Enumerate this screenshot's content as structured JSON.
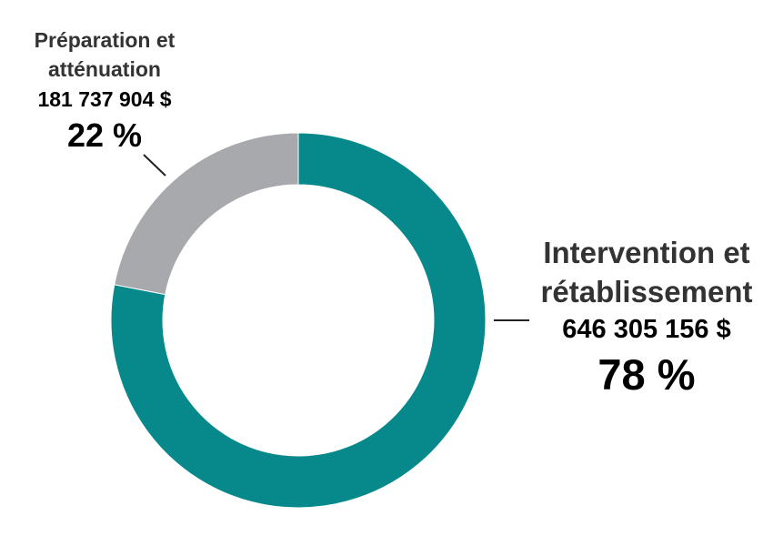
{
  "chart_data": {
    "type": "pie",
    "variant": "donut",
    "categories": [
      "Intervention et rétablissement",
      "Préparation et atténuation"
    ],
    "values": [
      646305156,
      181737904
    ],
    "percentages": [
      78,
      22
    ],
    "colors": [
      "#07898B",
      "#A7A9AC"
    ],
    "slices": [
      {
        "label_line1": "Intervention et",
        "label_line2": "rétablissement",
        "amount": "646 305 156 $",
        "percent": "78 %"
      },
      {
        "label_line1": "Préparation et",
        "label_line2": "atténuation",
        "amount": "181 737 904 $",
        "percent": "22 %"
      }
    ]
  }
}
